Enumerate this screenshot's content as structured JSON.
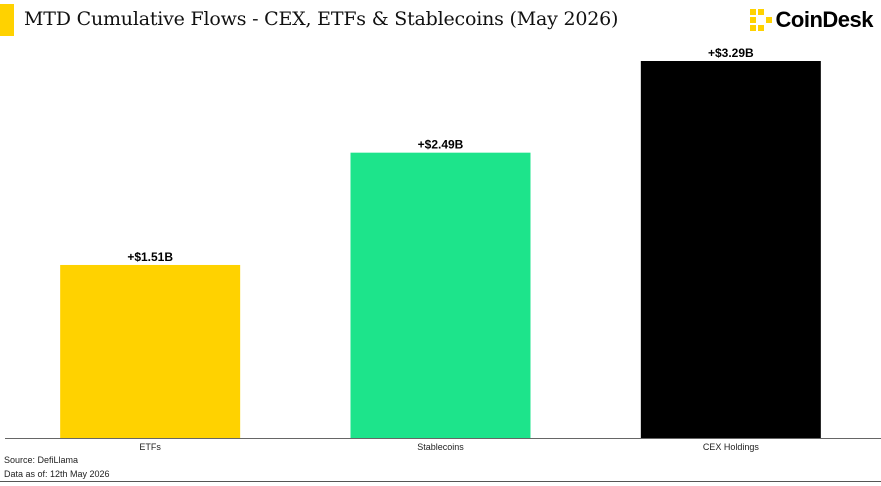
{
  "header": {
    "title": "MTD Cumulative Flows - CEX, ETFs & Stablecoins (May 2026)",
    "brand": "CoinDesk",
    "accent_color": "#FFD200"
  },
  "chart_data": {
    "type": "bar",
    "categories": [
      "ETFs",
      "Stablecoins",
      "CEX Holdings"
    ],
    "values": [
      1.51,
      2.49,
      3.29
    ],
    "data_labels": [
      "+$1.51B",
      "+$2.49B",
      "+$3.29B"
    ],
    "colors": [
      "#FFD200",
      "#1DE48B",
      "#000000"
    ],
    "unit": "B USD",
    "title": "MTD Cumulative Flows - CEX, ETFs & Stablecoins (May 2026)",
    "xlabel": "",
    "ylabel": "",
    "ylim": [
      0,
      3.29
    ],
    "grid": false,
    "legend": "none"
  },
  "footer": {
    "source": "Source: DefiLlama",
    "as_of": "Data as of: 12th May 2026"
  }
}
